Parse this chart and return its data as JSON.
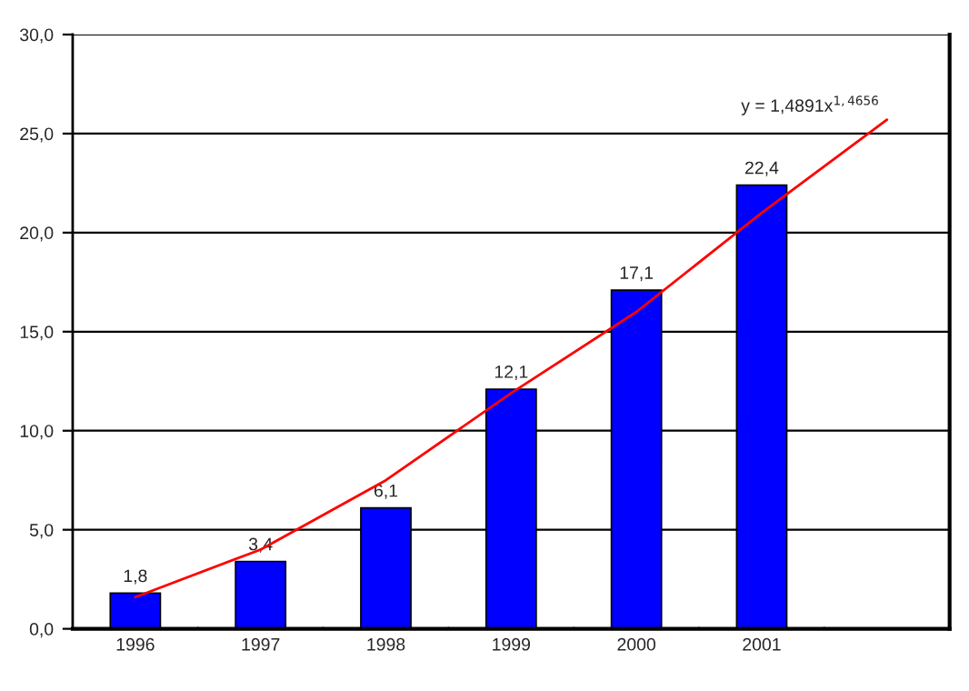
{
  "chart_data": {
    "type": "bar",
    "categories": [
      "1996",
      "1997",
      "1998",
      "1999",
      "2000",
      "2001",
      null
    ],
    "series": [
      {
        "color": "#0000ff",
        "values": [
          1.8,
          3.4,
          6.1,
          12.1,
          17.1,
          22.4,
          null
        ],
        "value_labels": [
          "1,8",
          "3,4",
          "6,1",
          "12,1",
          "17,1",
          "22,4",
          null
        ]
      },
      {
        "type": "line",
        "color": "#ff0000",
        "values": [
          1.6,
          4.0,
          7.5,
          11.9,
          16.0,
          21.0,
          25.7
        ]
      }
    ],
    "annotations": [
      "y = 1,4891x$^{1,4656}$"
    ],
    "ylim": [
      0,
      30
    ],
    "yticks": [
      {
        "value": 0,
        "label": "0,0"
      },
      {
        "value": 5,
        "label": "5,0"
      },
      {
        "value": 10,
        "label": "10,0"
      },
      {
        "value": 15,
        "label": "15,0"
      },
      {
        "value": 20,
        "label": "20,0"
      },
      {
        "value": 25,
        "label": "25,0"
      },
      {
        "value": 30,
        "label": "30,0"
      }
    ],
    "grid": "y",
    "legend": false
  }
}
